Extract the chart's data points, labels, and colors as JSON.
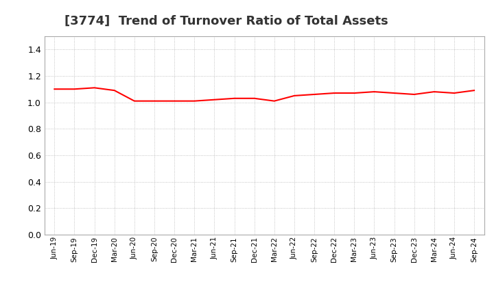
{
  "title": "[3774]  Trend of Turnover Ratio of Total Assets",
  "title_fontsize": 13,
  "line_color": "#FF0000",
  "line_width": 1.5,
  "background_color": "#FFFFFF",
  "grid_color": "#AAAAAA",
  "ylim": [
    0.0,
    1.5
  ],
  "yticks": [
    0.0,
    0.2,
    0.4,
    0.6,
    0.8,
    1.0,
    1.2,
    1.4
  ],
  "x_labels": [
    "Jun-19",
    "Sep-19",
    "Dec-19",
    "Mar-20",
    "Jun-20",
    "Sep-20",
    "Dec-20",
    "Mar-21",
    "Jun-21",
    "Sep-21",
    "Dec-21",
    "Mar-22",
    "Jun-22",
    "Sep-22",
    "Dec-22",
    "Mar-23",
    "Jun-23",
    "Sep-23",
    "Dec-23",
    "Mar-24",
    "Jun-24",
    "Sep-24"
  ],
  "values": [
    1.1,
    1.1,
    1.11,
    1.09,
    1.01,
    1.01,
    1.01,
    1.01,
    1.02,
    1.03,
    1.03,
    1.01,
    1.05,
    1.06,
    1.07,
    1.07,
    1.08,
    1.07,
    1.06,
    1.08,
    1.07,
    1.09
  ]
}
